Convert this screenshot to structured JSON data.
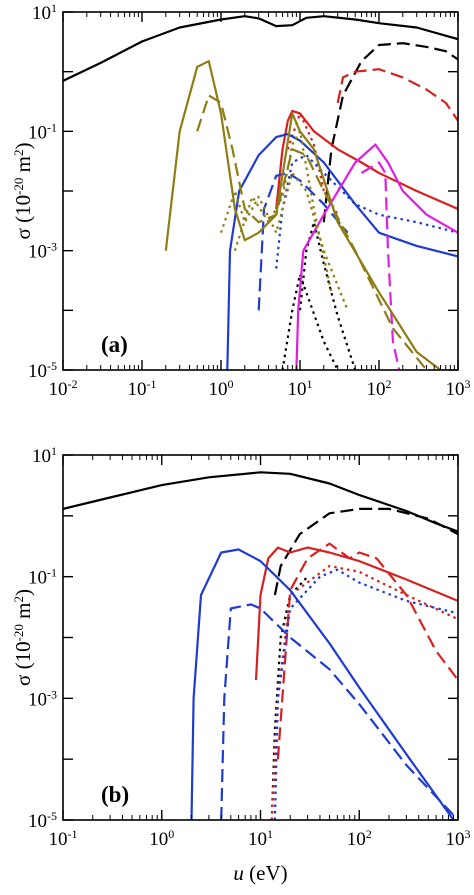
{
  "chart_data": [
    {
      "type": "line",
      "panel_label": "(a)",
      "ylabel": "σ (10^-20 m^2)",
      "xlabel": "",
      "xscale": "log",
      "yscale": "log",
      "xlim": [
        0.01,
        1000
      ],
      "ylim": [
        1e-05,
        10
      ],
      "x_ticks": [
        "10^-2",
        "10^-1",
        "10^0",
        "10^1",
        "10^2",
        "10^3"
      ],
      "y_ticks": [
        "10^-5",
        "10^-3",
        "10^-1",
        "10^1"
      ],
      "grid": false,
      "series": [
        {
          "color": "#000000",
          "dash": "solid",
          "points": [
            [
              0.01,
              0.7
            ],
            [
              0.03,
              1.4
            ],
            [
              0.1,
              3.2
            ],
            [
              0.3,
              5.5
            ],
            [
              1,
              7.5
            ],
            [
              2,
              8.5
            ],
            [
              3,
              7.8
            ],
            [
              5,
              5.8
            ],
            [
              8,
              6.0
            ],
            [
              12,
              8.0
            ],
            [
              20,
              8.5
            ],
            [
              50,
              7.5
            ],
            [
              100,
              6.5
            ],
            [
              300,
              5.5
            ],
            [
              1000,
              3.5
            ]
          ]
        },
        {
          "color": "#000000",
          "dash": "long",
          "points": [
            [
              20,
              0.003
            ],
            [
              25,
              0.05
            ],
            [
              35,
              0.4
            ],
            [
              60,
              1.5
            ],
            [
              100,
              2.8
            ],
            [
              200,
              3.0
            ],
            [
              400,
              2.6
            ],
            [
              700,
              2.2
            ],
            [
              1000,
              1.6
            ]
          ]
        },
        {
          "color": "#000000",
          "dash": "dot",
          "points": [
            [
              6,
              1e-05
            ],
            [
              8,
              0.0001
            ],
            [
              10,
              0.0004
            ],
            [
              12,
              0.0002
            ],
            [
              20,
              3e-05
            ],
            [
              30,
              1e-05
            ]
          ]
        },
        {
          "color": "#000000",
          "dash": "dot",
          "points": [
            [
              10,
              0.0001
            ],
            [
              12,
              0.001
            ],
            [
              15,
              0.003
            ],
            [
              20,
              0.0006
            ],
            [
              30,
              8e-05
            ],
            [
              50,
              1e-05
            ]
          ]
        },
        {
          "color": "#d72020",
          "dash": "solid",
          "points": [
            [
              5,
              0.005
            ],
            [
              6,
              0.05
            ],
            [
              7,
              0.15
            ],
            [
              8,
              0.22
            ],
            [
              10,
              0.2
            ],
            [
              15,
              0.1
            ],
            [
              30,
              0.05
            ],
            [
              60,
              0.03
            ],
            [
              100,
              0.02
            ],
            [
              300,
              0.01
            ],
            [
              1000,
              0.005
            ]
          ]
        },
        {
          "color": "#d72020",
          "dash": "long",
          "points": [
            [
              30,
              0.3
            ],
            [
              35,
              0.8
            ],
            [
              50,
              1.0
            ],
            [
              100,
              1.1
            ],
            [
              200,
              0.8
            ],
            [
              400,
              0.5
            ],
            [
              700,
              0.3
            ],
            [
              1000,
              0.15
            ]
          ]
        },
        {
          "color": "#d72020",
          "dash": "dot",
          "points": [
            [
              7,
              0.05
            ],
            [
              10,
              0.2
            ],
            [
              15,
              0.06
            ],
            [
              20,
              0.01
            ],
            [
              30,
              0.004
            ]
          ]
        },
        {
          "color": "#1f3bd1",
          "dash": "solid",
          "points": [
            [
              1.2,
              1e-05
            ],
            [
              1.3,
              0.001
            ],
            [
              1.7,
              0.01
            ],
            [
              3,
              0.04
            ],
            [
              5,
              0.08
            ],
            [
              7,
              0.09
            ],
            [
              10,
              0.07
            ],
            [
              20,
              0.03
            ],
            [
              50,
              0.006
            ],
            [
              100,
              0.002
            ],
            [
              300,
              0.0012
            ],
            [
              1000,
              0.0008
            ]
          ]
        },
        {
          "color": "#1f3bd1",
          "dash": "long",
          "points": [
            [
              3,
              0.0001
            ],
            [
              3.5,
              0.005
            ],
            [
              5,
              0.018
            ],
            [
              7,
              0.02
            ],
            [
              10,
              0.015
            ],
            [
              20,
              0.006
            ],
            [
              40,
              0.002
            ]
          ]
        },
        {
          "color": "#1f3bd1",
          "dash": "dot",
          "points": [
            [
              5,
              0.0005
            ],
            [
              6,
              0.005
            ],
            [
              8,
              0.03
            ],
            [
              12,
              0.04
            ],
            [
              20,
              0.02
            ],
            [
              50,
              0.006
            ],
            [
              100,
              0.004
            ],
            [
              300,
              0.003
            ],
            [
              1000,
              0.002
            ]
          ]
        },
        {
          "color": "#e01ee0",
          "dash": "solid",
          "points": [
            [
              9,
              1e-05
            ],
            [
              9.5,
              0.0001
            ],
            [
              11,
              0.001
            ],
            [
              20,
              0.004
            ],
            [
              50,
              0.03
            ],
            [
              90,
              0.06
            ],
            [
              130,
              0.03
            ],
            [
              200,
              0.01
            ],
            [
              400,
              0.004
            ],
            [
              1000,
              0.002
            ]
          ]
        },
        {
          "color": "#e01ee0",
          "dash": "long",
          "points": [
            [
              60,
              0.02
            ],
            [
              100,
              0.03
            ],
            [
              120,
              0.02
            ],
            [
              130,
              0.001
            ],
            [
              150,
              3e-05
            ],
            [
              180,
              1e-05
            ]
          ]
        },
        {
          "color": "#8c7d14",
          "dash": "solid",
          "points": [
            [
              0.2,
              0.001
            ],
            [
              0.3,
              0.1
            ],
            [
              0.5,
              1.2
            ],
            [
              0.7,
              1.5
            ],
            [
              1,
              0.2
            ],
            [
              1.5,
              0.005
            ],
            [
              2,
              0.0015
            ],
            [
              3,
              0.002
            ],
            [
              5,
              0.004
            ],
            [
              8,
              0.2
            ],
            [
              10,
              0.1
            ],
            [
              15,
              0.05
            ],
            [
              30,
              0.003
            ],
            [
              100,
              0.0002
            ],
            [
              300,
              2e-05
            ],
            [
              600,
              1e-05
            ]
          ]
        },
        {
          "color": "#8c7d14",
          "dash": "long",
          "points": [
            [
              0.5,
              0.1
            ],
            [
              0.7,
              0.4
            ],
            [
              1,
              0.3
            ],
            [
              1.4,
              0.05
            ],
            [
              2,
              0.005
            ],
            [
              3,
              0.003
            ],
            [
              5,
              0.004
            ],
            [
              8,
              0.05
            ],
            [
              12,
              0.04
            ],
            [
              20,
              0.01
            ],
            [
              50,
              0.001
            ],
            [
              150,
              5e-05
            ],
            [
              400,
              1e-05
            ]
          ]
        },
        {
          "color": "#8c7d14",
          "dash": "dot",
          "points": [
            [
              1,
              0.002
            ],
            [
              1.5,
              0.01
            ],
            [
              2,
              0.003
            ],
            [
              3,
              0.008
            ],
            [
              5,
              0.002
            ],
            [
              8,
              0.02
            ],
            [
              12,
              0.01
            ],
            [
              20,
              0.001
            ],
            [
              40,
              0.0001
            ]
          ]
        },
        {
          "color": "#8c7d14",
          "dash": "dot",
          "points": [
            [
              1.5,
              0.001
            ],
            [
              2.5,
              0.008
            ],
            [
              4,
              0.003
            ],
            [
              6,
              0.008
            ],
            [
              8,
              0.06
            ],
            [
              10,
              0.1
            ],
            [
              15,
              0.005
            ],
            [
              25,
              0.0002
            ]
          ]
        }
      ]
    },
    {
      "type": "line",
      "panel_label": "(b)",
      "ylabel": "σ (10^-20 m^2)",
      "xlabel": "u (eV)",
      "xscale": "log",
      "yscale": "log",
      "xlim": [
        0.1,
        1000
      ],
      "ylim": [
        1e-05,
        10
      ],
      "x_ticks": [
        "10^-1",
        "10^0",
        "10^1",
        "10^2",
        "10^3"
      ],
      "y_ticks": [
        "10^-5",
        "10^-3",
        "10^-1",
        "10^1"
      ],
      "grid": false,
      "series": [
        {
          "color": "#000000",
          "dash": "solid",
          "points": [
            [
              0.1,
              1.3
            ],
            [
              0.3,
              2.0
            ],
            [
              1,
              3.2
            ],
            [
              3,
              4.3
            ],
            [
              10,
              5.2
            ],
            [
              20,
              4.9
            ],
            [
              50,
              3.4
            ],
            [
              100,
              2.2
            ],
            [
              300,
              1.2
            ],
            [
              600,
              0.75
            ],
            [
              1000,
              0.55
            ]
          ]
        },
        {
          "color": "#000000",
          "dash": "long",
          "points": [
            [
              14,
              0.05
            ],
            [
              16,
              0.15
            ],
            [
              25,
              0.5
            ],
            [
              50,
              1.1
            ],
            [
              100,
              1.3
            ],
            [
              200,
              1.3
            ],
            [
              500,
              0.9
            ],
            [
              1000,
              0.5
            ]
          ]
        },
        {
          "color": "#000000",
          "dash": "dot",
          "points": [
            [
              13,
              1e-05
            ],
            [
              14,
              0.0003
            ],
            [
              16,
              0.01
            ],
            [
              20,
              0.05
            ],
            [
              30,
              0.1
            ]
          ]
        },
        {
          "color": "#d72020",
          "dash": "solid",
          "points": [
            [
              9,
              0.002
            ],
            [
              10,
              0.05
            ],
            [
              12,
              0.2
            ],
            [
              15,
              0.3
            ],
            [
              20,
              0.25
            ],
            [
              30,
              0.3
            ],
            [
              50,
              0.25
            ],
            [
              100,
              0.18
            ],
            [
              300,
              0.09
            ],
            [
              1000,
              0.04
            ]
          ]
        },
        {
          "color": "#d72020",
          "dash": "long",
          "points": [
            [
              15,
              0.0001
            ],
            [
              20,
              0.06
            ],
            [
              30,
              0.2
            ],
            [
              50,
              0.35
            ],
            [
              80,
              0.2
            ],
            [
              100,
              0.25
            ],
            [
              150,
              0.2
            ],
            [
              300,
              0.05
            ],
            [
              600,
              0.006
            ],
            [
              1000,
              0.002
            ]
          ]
        },
        {
          "color": "#d72020",
          "dash": "dot",
          "points": [
            [
              13,
              1e-05
            ],
            [
              15,
              0.001
            ],
            [
              20,
              0.05
            ],
            [
              50,
              0.15
            ],
            [
              100,
              0.12
            ],
            [
              300,
              0.05
            ],
            [
              1000,
              0.02
            ]
          ]
        },
        {
          "color": "#1f3bd1",
          "dash": "solid",
          "points": [
            [
              2,
              1e-05
            ],
            [
              2.1,
              0.001
            ],
            [
              2.5,
              0.05
            ],
            [
              4,
              0.25
            ],
            [
              6,
              0.28
            ],
            [
              10,
              0.18
            ],
            [
              20,
              0.06
            ],
            [
              50,
              0.008
            ],
            [
              100,
              0.0015
            ],
            [
              300,
              0.00012
            ],
            [
              900,
              1e-05
            ]
          ]
        },
        {
          "color": "#1f3bd1",
          "dash": "long",
          "points": [
            [
              4,
              1e-05
            ],
            [
              4.3,
              0.001
            ],
            [
              5,
              0.03
            ],
            [
              8,
              0.035
            ],
            [
              10,
              0.03
            ],
            [
              20,
              0.01
            ],
            [
              50,
              0.003
            ],
            [
              100,
              0.0008
            ],
            [
              300,
              8e-05
            ],
            [
              1000,
              1e-05
            ]
          ]
        },
        {
          "color": "#1f3bd1",
          "dash": "dot",
          "points": [
            [
              14,
              1e-05
            ],
            [
              15,
              0.001
            ],
            [
              20,
              0.03
            ],
            [
              40,
              0.1
            ],
            [
              60,
              0.13
            ],
            [
              100,
              0.08
            ],
            [
              300,
              0.04
            ],
            [
              1000,
              0.025
            ]
          ]
        }
      ]
    }
  ]
}
